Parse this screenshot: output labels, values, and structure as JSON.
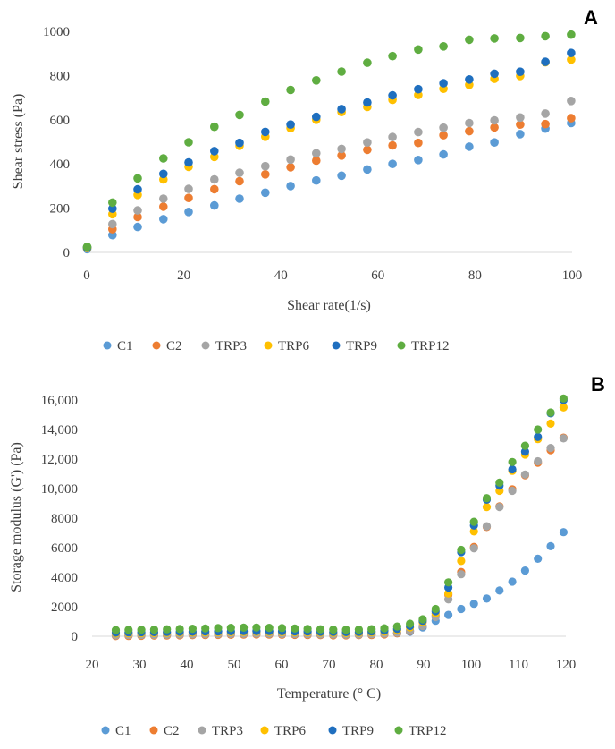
{
  "figure": {
    "panel_a_label": "A",
    "panel_b_label": "B"
  },
  "series_colors": {
    "C1": "#5B9BD5",
    "C2": "#ED7D31",
    "TRP3": "#A5A5A5",
    "TRP6": "#FFC000",
    "TRP9": "#1F6FBF",
    "TRP12": "#5FAD41"
  },
  "chart_data": [
    {
      "type": "scatter",
      "panel": "A",
      "xlabel": "Shear rate(1/s)",
      "ylabel": "Shear  stress (Pa)",
      "xlim": [
        0,
        100
      ],
      "ylim": [
        0,
        1000
      ],
      "xticks": [
        0,
        20,
        40,
        60,
        80,
        100
      ],
      "yticks": [
        0,
        200,
        400,
        600,
        800,
        1000
      ],
      "grid": false,
      "legend": "bottom",
      "x": [
        0.1,
        5.3,
        10.5,
        15.8,
        21,
        26.3,
        31.5,
        36.8,
        42,
        47.3,
        52.5,
        57.8,
        63,
        68.3,
        73.5,
        78.8,
        84,
        89.3,
        94.5,
        99.8
      ],
      "series": [
        {
          "name": "C1",
          "values": [
            15,
            78,
            115,
            150,
            183,
            212,
            243,
            270,
            300,
            325,
            347,
            375,
            400,
            418,
            443,
            478,
            497,
            535,
            560,
            585
          ]
        },
        {
          "name": "C2",
          "values": [
            20,
            105,
            160,
            207,
            246,
            286,
            322,
            353,
            385,
            415,
            438,
            464,
            484,
            495,
            530,
            548,
            565,
            578,
            580,
            607
          ]
        },
        {
          "name": "TRP3",
          "values": [
            22,
            128,
            190,
            243,
            287,
            330,
            360,
            390,
            420,
            448,
            468,
            497,
            522,
            544,
            564,
            585,
            597,
            610,
            628,
            685
          ]
        },
        {
          "name": "TRP6",
          "values": [
            20,
            173,
            260,
            330,
            387,
            432,
            482,
            523,
            562,
            600,
            635,
            658,
            690,
            712,
            740,
            758,
            785,
            798,
            860,
            872
          ]
        },
        {
          "name": "TRP9",
          "values": [
            22,
            198,
            285,
            355,
            407,
            458,
            495,
            545,
            578,
            613,
            648,
            678,
            710,
            738,
            765,
            782,
            808,
            817,
            862,
            902
          ]
        },
        {
          "name": "TRP12",
          "values": [
            25,
            225,
            335,
            425,
            498,
            568,
            622,
            682,
            735,
            778,
            818,
            858,
            888,
            918,
            932,
            962,
            968,
            970,
            978,
            985
          ]
        }
      ]
    },
    {
      "type": "scatter",
      "panel": "B",
      "xlabel": "Temperature  (° C)",
      "ylabel": "Storage modulus (G') (Pa)",
      "xlim": [
        20,
        120
      ],
      "ylim": [
        0,
        16000
      ],
      "xticks": [
        20,
        30,
        40,
        50,
        60,
        70,
        80,
        90,
        100,
        110,
        120
      ],
      "yticks": [
        0,
        2000,
        4000,
        6000,
        8000,
        10000,
        12000,
        14000,
        16000
      ],
      "ytick_labels": [
        "0",
        "2000",
        "4000",
        "6000",
        "8000",
        "10,000",
        "12,000",
        "14,000",
        "16,000"
      ],
      "grid": false,
      "legend": "bottom",
      "x": [
        25,
        27.7,
        30.4,
        33.1,
        35.8,
        38.5,
        41.2,
        43.9,
        46.6,
        49.3,
        52,
        54.7,
        57.4,
        60.1,
        62.8,
        65.5,
        68.2,
        70.9,
        73.6,
        76.3,
        79,
        81.7,
        84.4,
        87.1,
        89.8,
        92.5,
        95.2,
        97.9,
        100.6,
        103.3,
        106,
        108.7,
        111.4,
        114.1,
        116.8,
        119.5
      ],
      "series": [
        {
          "name": "C1",
          "values": [
            80,
            90,
            100,
            110,
            120,
            130,
            140,
            150,
            160,
            170,
            175,
            180,
            185,
            180,
            175,
            170,
            160,
            150,
            145,
            150,
            160,
            175,
            200,
            300,
            600,
            1050,
            1450,
            1850,
            2200,
            2550,
            3100,
            3700,
            4450,
            5250,
            6100,
            7050
          ]
        },
        {
          "name": "C2",
          "values": [
            10,
            20,
            30,
            40,
            50,
            60,
            70,
            80,
            90,
            100,
            110,
            120,
            110,
            100,
            90,
            80,
            70,
            60,
            60,
            70,
            80,
            120,
            200,
            350,
            700,
            1400,
            2800,
            4350,
            6050,
            7400,
            8800,
            9950,
            10900,
            11750,
            12600,
            13450
          ]
        },
        {
          "name": "TRP3",
          "values": [
            60,
            70,
            80,
            90,
            100,
            110,
            120,
            130,
            140,
            150,
            160,
            170,
            160,
            150,
            140,
            130,
            120,
            110,
            100,
            110,
            130,
            170,
            240,
            380,
            700,
            1300,
            2500,
            4200,
            5950,
            7450,
            8750,
            9850,
            10950,
            11850,
            12750,
            13400
          ]
        },
        {
          "name": "TRP6",
          "values": [
            190,
            200,
            210,
            220,
            230,
            240,
            250,
            260,
            270,
            280,
            290,
            300,
            290,
            280,
            270,
            260,
            240,
            230,
            220,
            230,
            260,
            310,
            420,
            600,
            950,
            1550,
            2900,
            5100,
            7100,
            8750,
            9850,
            11200,
            12300,
            13350,
            14400,
            15500
          ]
        },
        {
          "name": "TRP9",
          "values": [
            250,
            260,
            270,
            280,
            290,
            300,
            310,
            320,
            330,
            340,
            350,
            360,
            350,
            340,
            330,
            320,
            300,
            290,
            280,
            290,
            320,
            380,
            500,
            700,
            1050,
            1700,
            3300,
            5700,
            7500,
            9250,
            10200,
            11300,
            12500,
            13500,
            15100,
            16000
          ]
        },
        {
          "name": "TRP12",
          "values": [
            420,
            430,
            440,
            450,
            470,
            490,
            510,
            530,
            550,
            570,
            580,
            590,
            570,
            550,
            520,
            500,
            470,
            450,
            440,
            450,
            480,
            540,
            660,
            850,
            1150,
            1850,
            3650,
            5850,
            7750,
            9350,
            10400,
            11800,
            12900,
            14000,
            15150,
            16100
          ]
        }
      ]
    }
  ]
}
